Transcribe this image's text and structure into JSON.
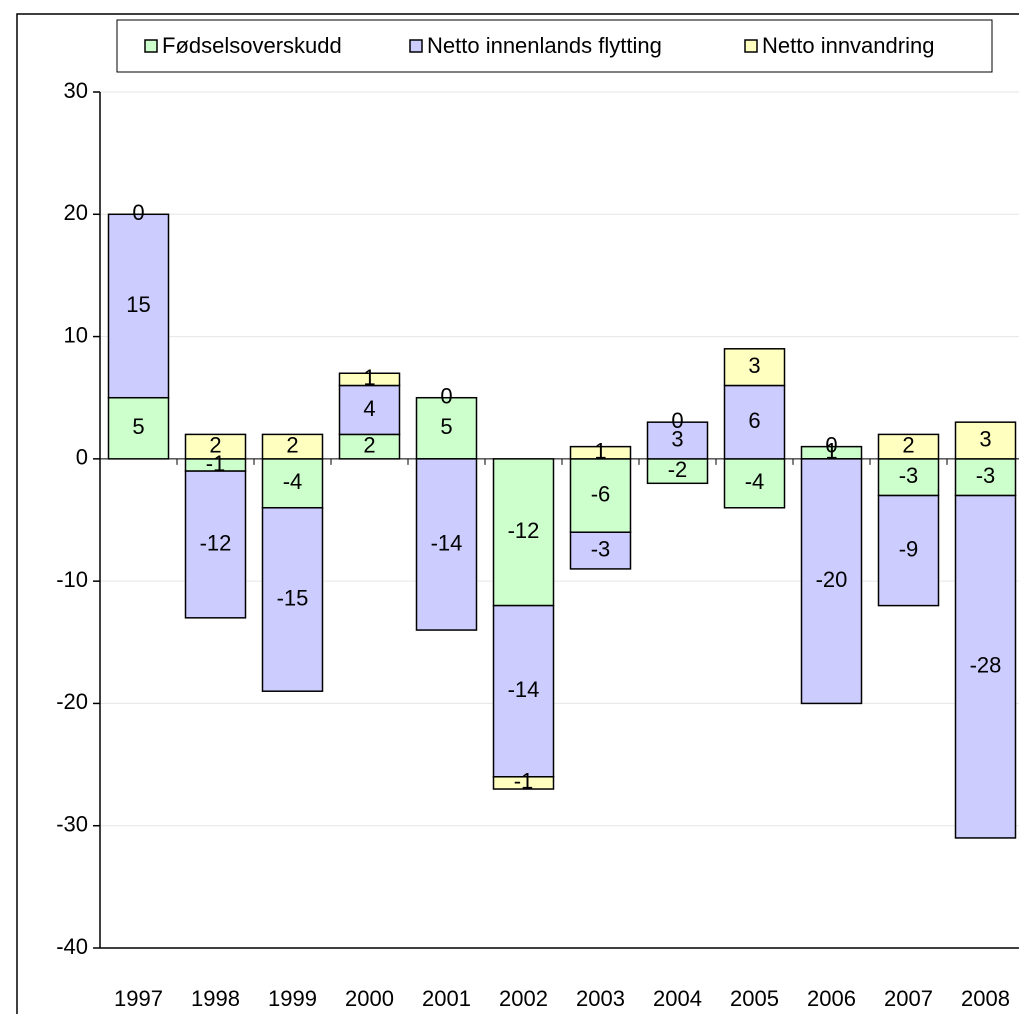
{
  "chart_data": {
    "type": "stacked_bar",
    "categories": [
      "1997",
      "1998",
      "1999",
      "2000",
      "2001",
      "2002",
      "2003",
      "2004",
      "2005",
      "2006",
      "2007",
      "2008"
    ],
    "series": [
      {
        "name": "Fødselsoverskudd",
        "color": "#ccffcc",
        "values": [
          5,
          -1,
          -4,
          2,
          5,
          -12,
          -6,
          -2,
          -4,
          1,
          -3,
          -3
        ]
      },
      {
        "name": "Netto innenlands flytting",
        "color": "#ccccff",
        "values": [
          15,
          -12,
          -15,
          4,
          -14,
          -14,
          -3,
          3,
          6,
          -20,
          -9,
          -28
        ]
      },
      {
        "name": "Netto innvandring",
        "color": "#ffffc0",
        "values": [
          0,
          2,
          2,
          1,
          0,
          -1,
          1,
          0,
          3,
          0,
          2,
          3
        ]
      }
    ],
    "ylim": [
      -40,
      30
    ],
    "yticks": [
      -40,
      -30,
      -20,
      -10,
      0,
      10,
      20,
      30
    ],
    "grid": true,
    "legend": "top"
  }
}
